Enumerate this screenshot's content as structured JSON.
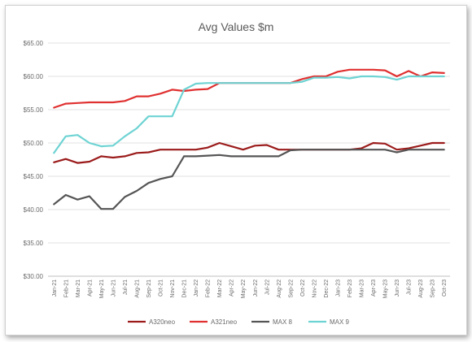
{
  "chart_data": {
    "type": "line",
    "title": "Avg Values $m",
    "xlabel": "",
    "ylabel": "",
    "ylim": [
      30,
      65
    ],
    "yticks": [
      "$30.00",
      "$35.00",
      "$40.00",
      "$45.00",
      "$50.00",
      "$55.00",
      "$60.00",
      "$65.00"
    ],
    "grid": "horizontal",
    "legend": "bottom",
    "categories": [
      "Jan-21",
      "Feb-21",
      "Mar-21",
      "Apr-21",
      "May-21",
      "Jun-21",
      "Jul-21",
      "Aug-21",
      "Sep-21",
      "Oct-21",
      "Nov-21",
      "Dec-21",
      "Jan-22",
      "Feb-22",
      "Mar-22",
      "Apr-22",
      "May-22",
      "Jun-22",
      "Jul-22",
      "Aug-22",
      "Sep-22",
      "Oct-22",
      "Nov-22",
      "Dec-22",
      "Jan-23",
      "Feb-23",
      "Mar-23",
      "Apr-23",
      "May-23",
      "Jun-23",
      "Jul-23",
      "Aug-23",
      "Sep-23",
      "Oct-23"
    ],
    "series": [
      {
        "name": "A320neo",
        "color": "#9b1b1b",
        "values": [
          47.1,
          47.6,
          47.0,
          47.2,
          48.0,
          47.8,
          48.0,
          48.5,
          48.6,
          49.0,
          49.0,
          49.0,
          49.0,
          49.3,
          50.0,
          49.5,
          49.0,
          49.6,
          49.7,
          49.0,
          49.0,
          49.0,
          49.0,
          49.0,
          49.0,
          49.0,
          49.2,
          50.0,
          49.9,
          49.0,
          49.2,
          49.6,
          50.0,
          50.0
        ]
      },
      {
        "name": "A321neo",
        "color": "#e03030",
        "values": [
          55.3,
          55.9,
          56.0,
          56.1,
          56.1,
          56.1,
          56.3,
          57.0,
          57.0,
          57.4,
          58.0,
          57.8,
          58.0,
          58.1,
          59.0,
          59.0,
          59.0,
          59.0,
          59.0,
          59.0,
          59.0,
          59.6,
          60.0,
          60.0,
          60.7,
          61.0,
          61.0,
          61.0,
          60.9,
          60.0,
          60.8,
          60.0,
          60.6,
          60.5
        ]
      },
      {
        "name": "MAX 8",
        "color": "#555555",
        "values": [
          40.8,
          42.2,
          41.5,
          42.0,
          40.1,
          40.1,
          41.9,
          42.8,
          44.0,
          44.6,
          45.0,
          48.0,
          48.0,
          48.1,
          48.2,
          48.0,
          48.0,
          48.0,
          48.0,
          48.0,
          48.9,
          49.0,
          49.0,
          49.0,
          49.0,
          49.0,
          49.0,
          49.0,
          49.0,
          48.6,
          49.0,
          49.0,
          49.0,
          49.0
        ]
      },
      {
        "name": "MAX 9",
        "color": "#6ed3d3",
        "values": [
          48.5,
          51.0,
          51.2,
          50.0,
          49.5,
          49.6,
          51.0,
          52.2,
          54.0,
          54.0,
          54.0,
          58.0,
          58.9,
          59.0,
          59.0,
          59.0,
          59.0,
          59.0,
          59.0,
          59.0,
          59.0,
          59.2,
          59.8,
          59.8,
          59.9,
          59.7,
          60.0,
          60.0,
          59.9,
          59.5,
          60.0,
          60.0,
          60.0,
          60.0
        ]
      }
    ]
  }
}
